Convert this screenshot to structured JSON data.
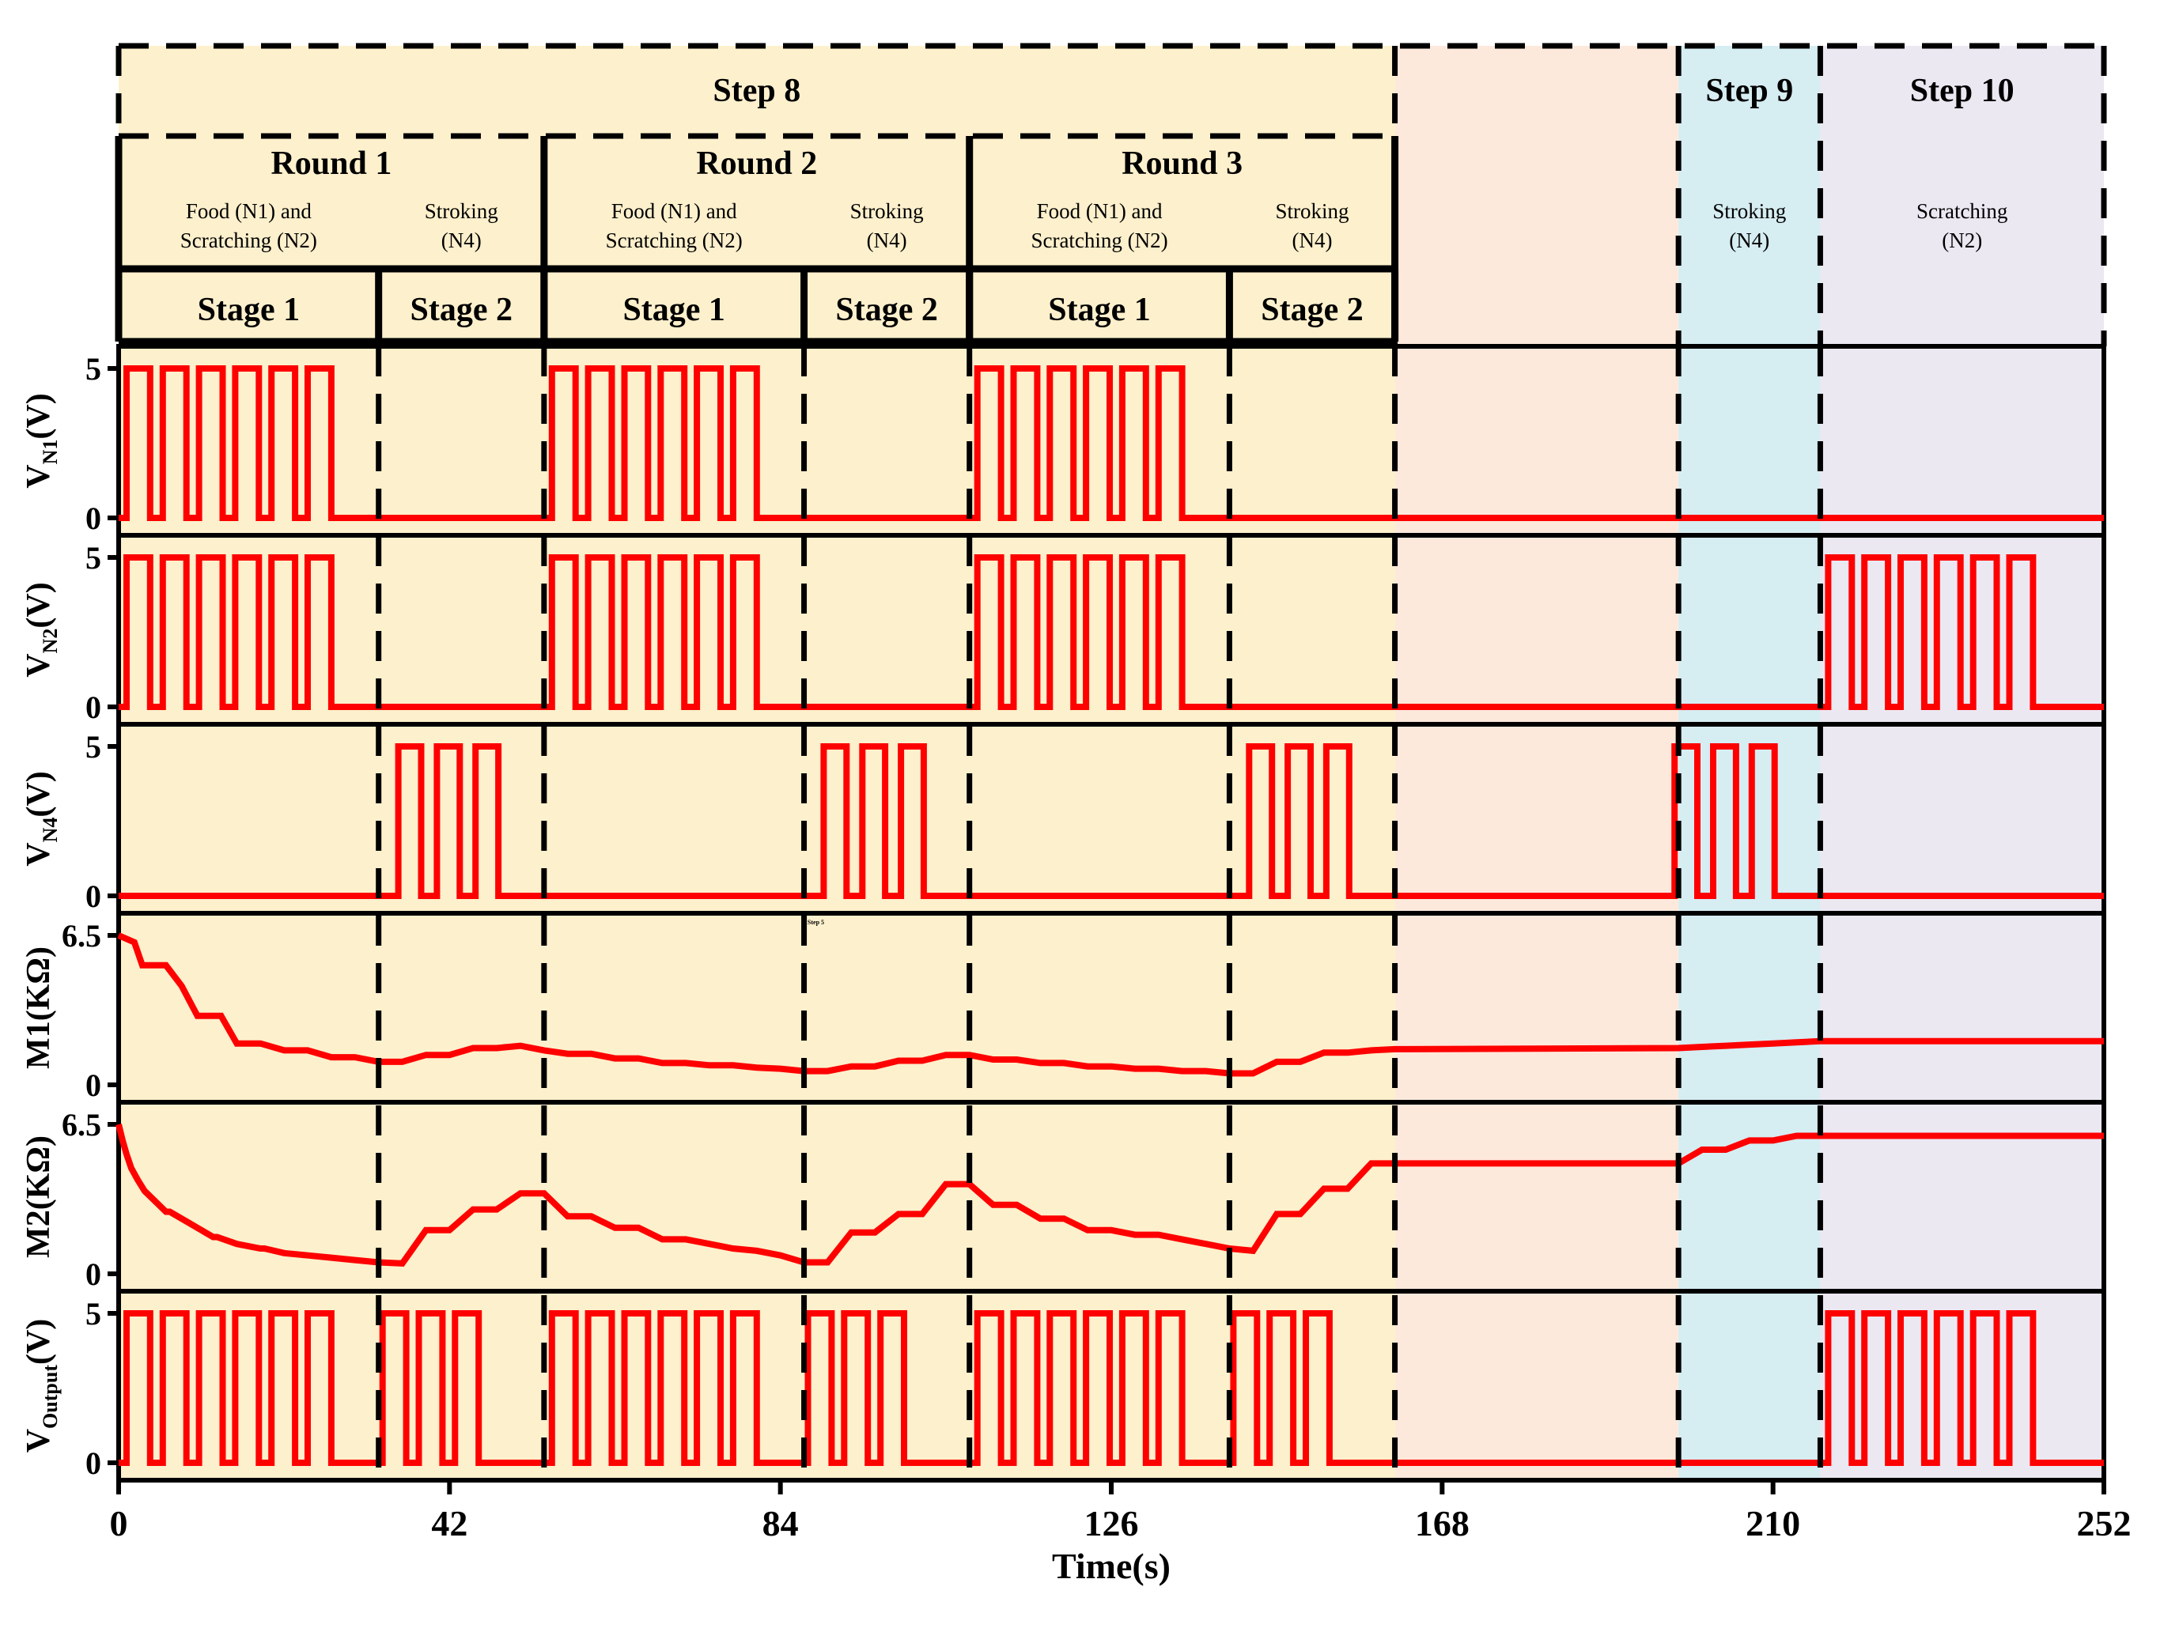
{
  "chart_data": {
    "type": "line",
    "xlabel": "Time(s)",
    "xlim": [
      0,
      252
    ],
    "x_ticks": [
      "0",
      "42",
      "84",
      "126",
      "168",
      "210",
      "252"
    ],
    "steps": [
      {
        "label": "Step 8",
        "start": 0,
        "end": 162
      },
      {
        "label": "",
        "start": 162,
        "end": 198
      },
      {
        "label": "Step 9",
        "start": 198,
        "end": 216
      },
      {
        "label": "Step 10",
        "start": 216,
        "end": 252
      }
    ],
    "step_colors": [
      "#fdf0cc",
      "#fde9dc",
      "#d6edf2",
      "#ece8f2"
    ],
    "rounds": [
      {
        "label": "Round 1",
        "start": 0,
        "end": 54
      },
      {
        "label": "Round 2",
        "start": 54,
        "end": 108
      },
      {
        "label": "Round 3",
        "start": 108,
        "end": 162
      }
    ],
    "stages": [
      {
        "label": "Stage 1",
        "desc": [
          "Food (N1) and",
          "Scratching (N2)"
        ],
        "start": 0,
        "end": 33
      },
      {
        "label": "Stage 2",
        "desc": [
          "Stroking",
          "(N4)"
        ],
        "start": 33,
        "end": 54
      },
      {
        "label": "Stage 1",
        "desc": [
          "Food (N1) and",
          "Scratching (N2)"
        ],
        "start": 54,
        "end": 87
      },
      {
        "label": "Stage 2",
        "desc": [
          "Stroking",
          "(N4)"
        ],
        "start": 87,
        "end": 108
      },
      {
        "label": "Stage 1",
        "desc": [
          "Food (N1) and",
          "Scratching (N2)"
        ],
        "start": 108,
        "end": 141
      },
      {
        "label": "Stage 2",
        "desc": [
          "Stroking",
          "(N4)"
        ],
        "start": 141,
        "end": 162
      }
    ],
    "step_descs": [
      {
        "lines": [
          "Stroking",
          "(N4)"
        ],
        "start": 198,
        "end": 216
      },
      {
        "lines": [
          "Scratching",
          "(N2)"
        ],
        "start": 216,
        "end": 252
      }
    ],
    "panels": [
      {
        "ylabel": "VN1(V)",
        "ylabel_main": "V",
        "ylabel_sub": "N1",
        "ylabel_unit": "(V)",
        "ylim": [
          0,
          5
        ],
        "yticks": [
          "0",
          "5"
        ],
        "kind": "pulse",
        "pulses": [
          {
            "start": 1,
            "count": 6,
            "high": 3,
            "low": 1.6
          },
          {
            "start": 55,
            "count": 6,
            "high": 3,
            "low": 1.6
          },
          {
            "start": 109,
            "count": 6,
            "high": 3,
            "low": 1.6
          }
        ]
      },
      {
        "ylabel": "VN2(V)",
        "ylabel_main": "V",
        "ylabel_sub": "N2",
        "ylabel_unit": "(V)",
        "ylim": [
          0,
          5
        ],
        "yticks": [
          "0",
          "5"
        ],
        "kind": "pulse",
        "pulses": [
          {
            "start": 1,
            "count": 6,
            "high": 3,
            "low": 1.6
          },
          {
            "start": 55,
            "count": 6,
            "high": 3,
            "low": 1.6
          },
          {
            "start": 109,
            "count": 6,
            "high": 3,
            "low": 1.6
          },
          {
            "start": 217,
            "count": 6,
            "high": 3,
            "low": 1.6
          }
        ]
      },
      {
        "ylabel": "VN4(V)",
        "ylabel_main": "V",
        "ylabel_sub": "N4",
        "ylabel_unit": "(V)",
        "ylim": [
          0,
          5
        ],
        "yticks": [
          "0",
          "5"
        ],
        "kind": "pulse",
        "pulses": [
          {
            "start": 35.5,
            "count": 3,
            "high": 2.9,
            "low": 2
          },
          {
            "start": 89.5,
            "count": 3,
            "high": 2.9,
            "low": 2
          },
          {
            "start": 143.5,
            "count": 3,
            "high": 2.9,
            "low": 2
          },
          {
            "start": 197.5,
            "count": 3,
            "high": 2.9,
            "low": 2
          }
        ]
      },
      {
        "ylabel": "M1(KΩ)",
        "ylabel_main": "M1(KΩ)",
        "ylabel_sub": "",
        "ylabel_unit": "",
        "ylim": [
          0,
          6.5
        ],
        "yticks": [
          "0",
          "6.5"
        ],
        "kind": "line",
        "x": [
          0,
          2,
          3,
          6,
          8,
          10,
          13,
          15,
          18,
          21,
          24,
          27,
          30,
          33,
          36,
          39,
          42,
          45,
          48,
          51,
          54,
          57,
          60,
          63,
          66,
          69,
          72,
          75,
          78,
          81,
          84,
          87,
          90,
          93,
          96,
          99,
          102,
          105,
          108,
          111,
          114,
          117,
          120,
          123,
          126,
          129,
          132,
          135,
          138,
          141,
          144,
          147,
          150,
          153,
          156,
          159,
          162,
          198,
          201,
          204,
          207,
          210,
          213,
          216,
          252
        ],
        "y": [
          6.5,
          6.2,
          5.2,
          5.2,
          4.3,
          3.0,
          3.0,
          1.8,
          1.8,
          1.5,
          1.5,
          1.2,
          1.2,
          1.0,
          1.0,
          1.3,
          1.3,
          1.6,
          1.6,
          1.7,
          1.5,
          1.35,
          1.35,
          1.15,
          1.15,
          0.95,
          0.95,
          0.85,
          0.85,
          0.75,
          0.7,
          0.6,
          0.6,
          0.8,
          0.8,
          1.05,
          1.05,
          1.3,
          1.3,
          1.1,
          1.1,
          0.95,
          0.95,
          0.8,
          0.8,
          0.7,
          0.7,
          0.6,
          0.6,
          0.5,
          0.5,
          1.0,
          1.0,
          1.4,
          1.4,
          1.5,
          1.55,
          1.6,
          1.65,
          1.7,
          1.75,
          1.8,
          1.85,
          1.9,
          1.9
        ]
      },
      {
        "ylabel": "M2(KΩ)",
        "ylabel_main": "M2(KΩ)",
        "ylabel_sub": "",
        "ylabel_unit": "",
        "ylim": [
          0,
          6.5
        ],
        "yticks": [
          "0",
          "6.5"
        ],
        "kind": "line",
        "x": [
          0,
          0.5,
          1,
          1.6,
          2.4,
          3.3,
          6,
          6.5,
          9,
          12,
          12.5,
          15,
          18,
          18.5,
          21,
          24,
          27,
          30,
          33,
          36,
          39,
          42,
          45,
          48,
          51,
          54,
          57,
          60,
          63,
          66,
          69,
          72,
          75,
          78,
          81,
          84,
          87,
          90,
          93,
          96,
          99,
          102,
          105,
          108,
          111,
          114,
          117,
          120,
          123,
          126,
          129,
          132,
          135,
          138,
          141,
          144,
          147,
          150,
          153,
          156,
          159,
          162,
          198,
          201,
          204,
          207,
          210,
          213,
          216,
          252
        ],
        "y": [
          6.5,
          5.8,
          5.2,
          4.6,
          4.1,
          3.6,
          2.7,
          2.7,
          2.2,
          1.6,
          1.6,
          1.3,
          1.1,
          1.1,
          0.9,
          0.8,
          0.7,
          0.6,
          0.5,
          0.45,
          1.9,
          1.9,
          2.8,
          2.8,
          3.5,
          3.5,
          2.5,
          2.5,
          2.0,
          2.0,
          1.5,
          1.5,
          1.3,
          1.1,
          1.0,
          0.8,
          0.5,
          0.5,
          1.8,
          1.8,
          2.6,
          2.6,
          3.9,
          3.9,
          3.0,
          3.0,
          2.4,
          2.4,
          1.9,
          1.9,
          1.7,
          1.7,
          1.5,
          1.3,
          1.1,
          1.0,
          2.6,
          2.6,
          3.7,
          3.7,
          4.8,
          4.8,
          4.8,
          5.4,
          5.4,
          5.8,
          5.8,
          6.0,
          6.0,
          6.0
        ]
      },
      {
        "ylabel": "VOutput(V)",
        "ylabel_main": "V",
        "ylabel_sub": "Output",
        "ylabel_unit": "(V)",
        "ylim": [
          0,
          5
        ],
        "yticks": [
          "0",
          "5"
        ],
        "kind": "pulse",
        "pulses": [
          {
            "start": 1,
            "count": 6,
            "high": 3,
            "low": 1.6
          },
          {
            "start": 33.5,
            "count": 3,
            "high": 3,
            "low": 1.6
          },
          {
            "start": 55,
            "count": 6,
            "high": 3,
            "low": 1.6
          },
          {
            "start": 87.5,
            "count": 3,
            "high": 3,
            "low": 1.6
          },
          {
            "start": 109,
            "count": 6,
            "high": 3,
            "low": 1.6
          },
          {
            "start": 141.5,
            "count": 3,
            "high": 3,
            "low": 1.6
          },
          {
            "start": 217,
            "count": 6,
            "high": 3,
            "low": 1.6
          }
        ]
      }
    ],
    "annotations": [
      "Step 5"
    ]
  }
}
